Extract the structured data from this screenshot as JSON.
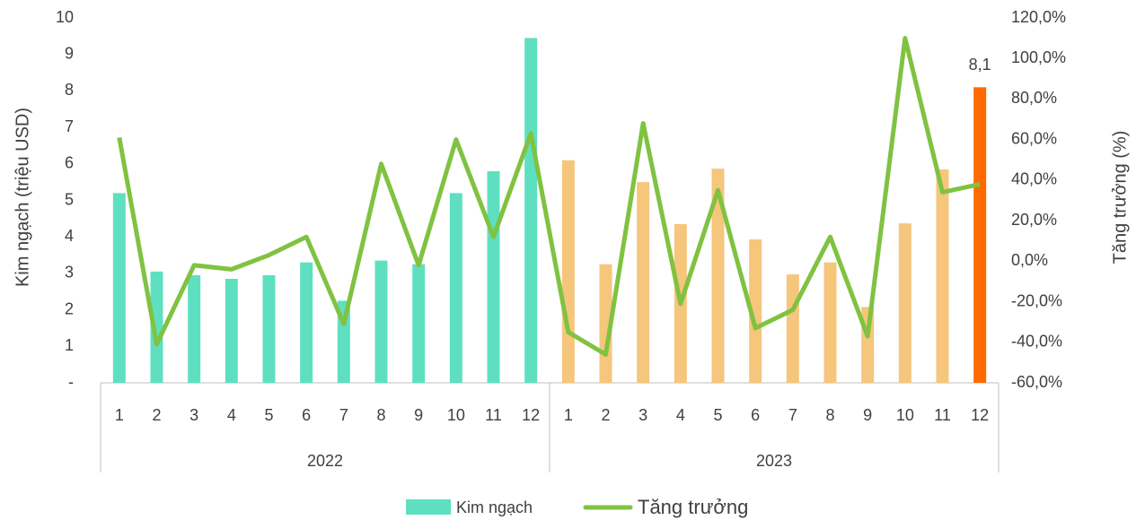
{
  "chart_data": {
    "type": "bar-line",
    "categories": [
      "1",
      "2",
      "3",
      "4",
      "5",
      "6",
      "7",
      "8",
      "9",
      "10",
      "11",
      "12",
      "1",
      "2",
      "3",
      "4",
      "5",
      "6",
      "7",
      "8",
      "9",
      "10",
      "11",
      "12"
    ],
    "category_groups": [
      "2022",
      "2023"
    ],
    "ylabel": "Kim ngạch (triệu USD)",
    "y2label": "Tăng trưởng (%)",
    "ylim": [
      0,
      10
    ],
    "yticks": [
      {
        "value": 0,
        "label": "-"
      },
      1,
      2,
      3,
      4,
      5,
      6,
      7,
      8,
      9,
      10
    ],
    "y2lim": [
      -60,
      120
    ],
    "y2ticks": [
      {
        "value": -60,
        "label": "-60,0%"
      },
      {
        "value": -40,
        "label": "-40,0%"
      },
      {
        "value": -20,
        "label": "-20,0%"
      },
      {
        "value": 0,
        "label": "0,0%"
      },
      {
        "value": 20,
        "label": "20,0%"
      },
      {
        "value": 40,
        "label": "40,0%"
      },
      {
        "value": 60,
        "label": "60,0%"
      },
      {
        "value": 80,
        "label": "80,0%"
      },
      {
        "value": 100,
        "label": "100,0%"
      },
      {
        "value": 120,
        "label": "120,0%"
      }
    ],
    "grid": false,
    "legend": "bottom",
    "series": [
      {
        "name": "Kim ngạch",
        "type": "bar",
        "color": "#5ee0c0",
        "colors": [
          "#5ee0c0",
          "#5ee0c0",
          "#5ee0c0",
          "#5ee0c0",
          "#5ee0c0",
          "#5ee0c0",
          "#5ee0c0",
          "#5ee0c0",
          "#5ee0c0",
          "#5ee0c0",
          "#5ee0c0",
          "#5ee0c0",
          "#f5c67c",
          "#f5c67c",
          "#f5c67c",
          "#f5c67c",
          "#f5c67c",
          "#f5c67c",
          "#f5c67c",
          "#f5c67c",
          "#f5c67c",
          "#f5c67c",
          "#f5c67c",
          "#ff6a00"
        ],
        "values": [
          5.2,
          3.05,
          2.95,
          2.85,
          2.95,
          3.3,
          2.25,
          3.35,
          3.25,
          5.2,
          5.8,
          9.45,
          6.1,
          3.25,
          5.5,
          4.35,
          5.87,
          3.93,
          2.97,
          3.3,
          2.08,
          4.37,
          5.85,
          8.1
        ],
        "value_labels": [
          null,
          null,
          null,
          null,
          null,
          null,
          null,
          null,
          null,
          null,
          null,
          null,
          null,
          null,
          null,
          null,
          null,
          null,
          null,
          null,
          null,
          null,
          null,
          "8,1"
        ]
      },
      {
        "name": "Tăng trưởng",
        "type": "line",
        "color": "#80c241",
        "axis": "y2",
        "values": [
          61,
          -41,
          -2,
          -4,
          3,
          12,
          -31,
          48,
          -2,
          60,
          12,
          63,
          -35,
          -46,
          68,
          -21,
          35,
          -33,
          -24,
          12,
          -37,
          110,
          34,
          38
        ]
      }
    ]
  }
}
